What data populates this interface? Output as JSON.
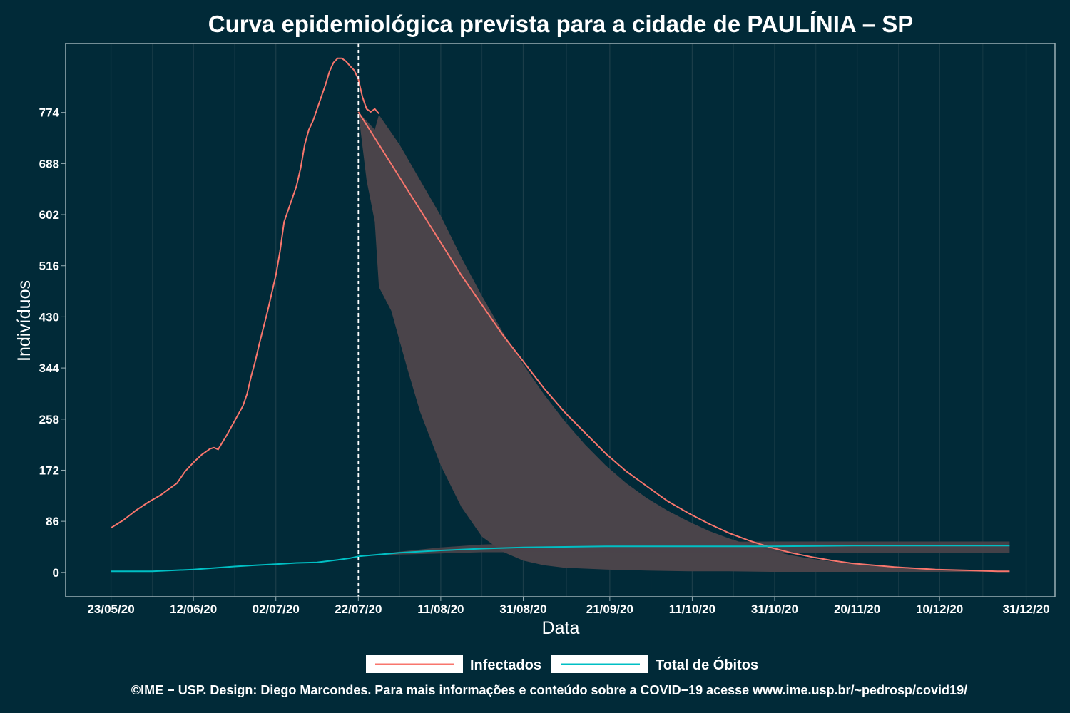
{
  "chart_data": {
    "type": "line",
    "title": "Curva epidemiológica prevista para a cidade de PAULÍNIA – SP",
    "xlabel": "Data",
    "ylabel": "Indivíduos",
    "x_tick_labels": [
      "23/05/20",
      "12/06/20",
      "02/07/20",
      "22/07/20",
      "11/08/20",
      "31/08/20",
      "21/09/20",
      "11/10/20",
      "31/10/20",
      "20/11/20",
      "10/12/20",
      "31/12/20"
    ],
    "x_tick_days": [
      0,
      20,
      40,
      60,
      80,
      100,
      121,
      141,
      161,
      181,
      201,
      222
    ],
    "y_ticks": [
      0,
      86,
      172,
      258,
      344,
      430,
      516,
      602,
      688,
      774
    ],
    "ylim": [
      -41,
      890
    ],
    "xlim": [
      -11,
      229
    ],
    "forecast_start_day": 60,
    "forecast_line_label": "22/07/20",
    "grid": true,
    "legend_position": "bottom",
    "series": [
      {
        "name": "Infectados",
        "color": "#f8766d",
        "observed": [
          [
            0,
            75
          ],
          [
            3,
            88
          ],
          [
            6,
            104
          ],
          [
            9,
            118
          ],
          [
            12,
            130
          ],
          [
            14,
            140
          ],
          [
            16,
            150
          ],
          [
            18,
            170
          ],
          [
            20,
            185
          ],
          [
            22,
            198
          ],
          [
            24,
            208
          ],
          [
            25,
            210
          ],
          [
            26,
            207
          ],
          [
            28,
            230
          ],
          [
            30,
            255
          ],
          [
            32,
            280
          ],
          [
            33,
            300
          ],
          [
            34,
            330
          ],
          [
            35,
            355
          ],
          [
            36,
            385
          ],
          [
            38,
            440
          ],
          [
            40,
            500
          ],
          [
            41,
            540
          ],
          [
            42,
            590
          ],
          [
            44,
            630
          ],
          [
            45,
            650
          ],
          [
            46,
            680
          ],
          [
            47,
            720
          ],
          [
            48,
            745
          ],
          [
            49,
            760
          ],
          [
            51,
            800
          ],
          [
            52,
            820
          ],
          [
            53,
            843
          ],
          [
            54,
            858
          ],
          [
            55,
            865
          ],
          [
            56,
            865
          ],
          [
            57,
            860
          ],
          [
            58,
            852
          ],
          [
            59,
            845
          ],
          [
            60,
            830
          ],
          [
            61,
            800
          ],
          [
            62,
            780
          ],
          [
            63,
            775
          ],
          [
            64,
            780
          ],
          [
            65,
            772
          ]
        ],
        "forecast": [
          [
            60,
            775
          ],
          [
            65,
            720
          ],
          [
            70,
            665
          ],
          [
            75,
            610
          ],
          [
            80,
            555
          ],
          [
            85,
            500
          ],
          [
            90,
            450
          ],
          [
            95,
            400
          ],
          [
            100,
            355
          ],
          [
            105,
            310
          ],
          [
            110,
            270
          ],
          [
            115,
            235
          ],
          [
            120,
            200
          ],
          [
            125,
            170
          ],
          [
            130,
            145
          ],
          [
            135,
            120
          ],
          [
            140,
            100
          ],
          [
            145,
            82
          ],
          [
            150,
            66
          ],
          [
            155,
            53
          ],
          [
            160,
            42
          ],
          [
            165,
            33
          ],
          [
            170,
            26
          ],
          [
            175,
            20
          ],
          [
            180,
            15
          ],
          [
            185,
            12
          ],
          [
            190,
            9
          ],
          [
            195,
            7
          ],
          [
            200,
            5
          ],
          [
            205,
            4
          ],
          [
            210,
            3
          ],
          [
            215,
            2
          ],
          [
            218,
            2
          ]
        ],
        "band_upper": [
          [
            60,
            775
          ],
          [
            64,
            745
          ],
          [
            65,
            770
          ],
          [
            70,
            720
          ],
          [
            75,
            660
          ],
          [
            80,
            600
          ],
          [
            85,
            530
          ],
          [
            90,
            465
          ],
          [
            95,
            405
          ],
          [
            100,
            350
          ],
          [
            105,
            300
          ],
          [
            110,
            255
          ],
          [
            115,
            215
          ],
          [
            120,
            180
          ],
          [
            125,
            150
          ],
          [
            130,
            125
          ],
          [
            135,
            104
          ],
          [
            140,
            86
          ],
          [
            145,
            70
          ],
          [
            150,
            57
          ],
          [
            155,
            46
          ],
          [
            160,
            37
          ],
          [
            165,
            29
          ],
          [
            170,
            23
          ],
          [
            175,
            18
          ],
          [
            180,
            14
          ],
          [
            185,
            11
          ],
          [
            190,
            8
          ],
          [
            195,
            6
          ],
          [
            200,
            5
          ],
          [
            205,
            4
          ],
          [
            210,
            3
          ],
          [
            215,
            2
          ],
          [
            218,
            2
          ]
        ],
        "band_lower": [
          [
            218,
            1
          ],
          [
            210,
            1
          ],
          [
            200,
            1
          ],
          [
            190,
            1
          ],
          [
            180,
            1
          ],
          [
            170,
            1
          ],
          [
            160,
            1
          ],
          [
            150,
            2
          ],
          [
            140,
            2
          ],
          [
            130,
            3
          ],
          [
            120,
            5
          ],
          [
            110,
            8
          ],
          [
            105,
            12
          ],
          [
            100,
            20
          ],
          [
            95,
            35
          ],
          [
            90,
            60
          ],
          [
            85,
            110
          ],
          [
            80,
            180
          ],
          [
            75,
            270
          ],
          [
            72,
            340
          ],
          [
            70,
            390
          ],
          [
            68,
            440
          ],
          [
            65,
            480
          ],
          [
            64,
            590
          ],
          [
            62,
            660
          ],
          [
            60,
            775
          ]
        ]
      },
      {
        "name": "Total de Óbitos",
        "color": "#00bfc4",
        "observed": [
          [
            0,
            2
          ],
          [
            10,
            2
          ],
          [
            20,
            5
          ],
          [
            30,
            10
          ],
          [
            35,
            12
          ],
          [
            40,
            14
          ],
          [
            45,
            16
          ],
          [
            50,
            17
          ],
          [
            55,
            21
          ],
          [
            58,
            24
          ],
          [
            60,
            27
          ]
        ],
        "forecast": [
          [
            60,
            27
          ],
          [
            65,
            30
          ],
          [
            70,
            33
          ],
          [
            80,
            37
          ],
          [
            90,
            40
          ],
          [
            100,
            42
          ],
          [
            110,
            43
          ],
          [
            120,
            44
          ],
          [
            140,
            44
          ],
          [
            160,
            44
          ],
          [
            180,
            45
          ],
          [
            200,
            45
          ],
          [
            218,
            45
          ]
        ],
        "band_upper": [
          [
            60,
            27
          ],
          [
            70,
            35
          ],
          [
            80,
            42
          ],
          [
            90,
            47
          ],
          [
            100,
            49
          ],
          [
            120,
            51
          ],
          [
            160,
            52
          ],
          [
            218,
            52
          ]
        ],
        "band_lower": [
          [
            218,
            33
          ],
          [
            160,
            33
          ],
          [
            120,
            34
          ],
          [
            100,
            34
          ],
          [
            90,
            34
          ],
          [
            80,
            32
          ],
          [
            70,
            30
          ],
          [
            60,
            27
          ]
        ]
      }
    ],
    "legend": [
      "Infectados",
      "Total de Óbitos"
    ]
  },
  "footer": "©IME − USP. Design: Diego Marcondes. Para mais informações e conteúdo sobre a COVID−19 acesse www.ime.usp.br/~pedrosp/covid19/",
  "colors": {
    "background": "#012a38",
    "band": "#4a444a",
    "grid": "#1b3d49",
    "panel_border": "#9ab0b6"
  }
}
